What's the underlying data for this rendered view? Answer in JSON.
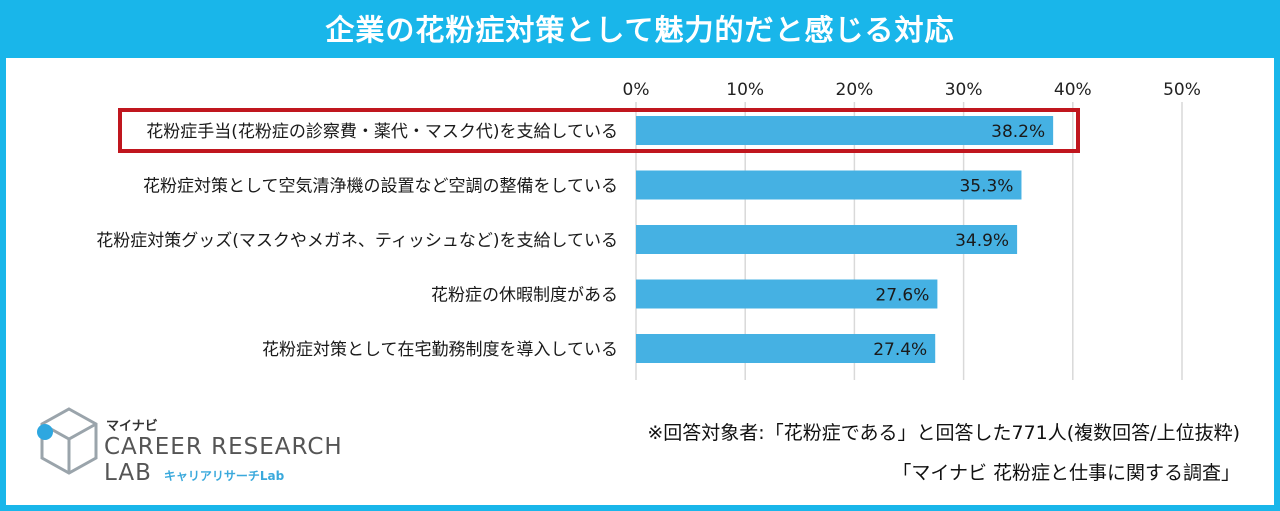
{
  "title": "企業の花粉症対策として魅力的だと感じる対応",
  "colors": {
    "accent": "#19b6ea",
    "bar": "#45b1e3",
    "highlight": "#c0161e",
    "grid": "#d9d9d9"
  },
  "chart_data": {
    "type": "bar",
    "orientation": "horizontal",
    "categories": [
      "花粉症手当(花粉症の診察費・薬代・マスク代)を支給している",
      "花粉症対策として空気清浄機の設置など空調の整備をしている",
      "花粉症対策グッズ(マスクやメガネ、ティッシュなど)を支給している",
      "花粉症の休暇制度がある",
      "花粉症対策として在宅勤務制度を導入している"
    ],
    "values": [
      38.2,
      35.3,
      34.9,
      27.6,
      27.4
    ],
    "value_labels": [
      "38.2%",
      "35.3%",
      "34.9%",
      "27.6%",
      "27.4%"
    ],
    "x_ticks": [
      "0%",
      "10%",
      "20%",
      "30%",
      "40%",
      "50%"
    ],
    "xlim": [
      0,
      50
    ],
    "grid": true,
    "highlighted_category_index": 0
  },
  "notes": {
    "respondents": "※回答対象者:「花粉症である」と回答した771人(複数回答/上位抜粋)",
    "source": "「マイナビ 花粉症と仕事に関する調査」"
  },
  "logo": {
    "brand": "マイナビ",
    "name_line1": "CAREER RESEARCH",
    "name_line2": "LAB",
    "sub": "キャリアリサーチLab"
  }
}
